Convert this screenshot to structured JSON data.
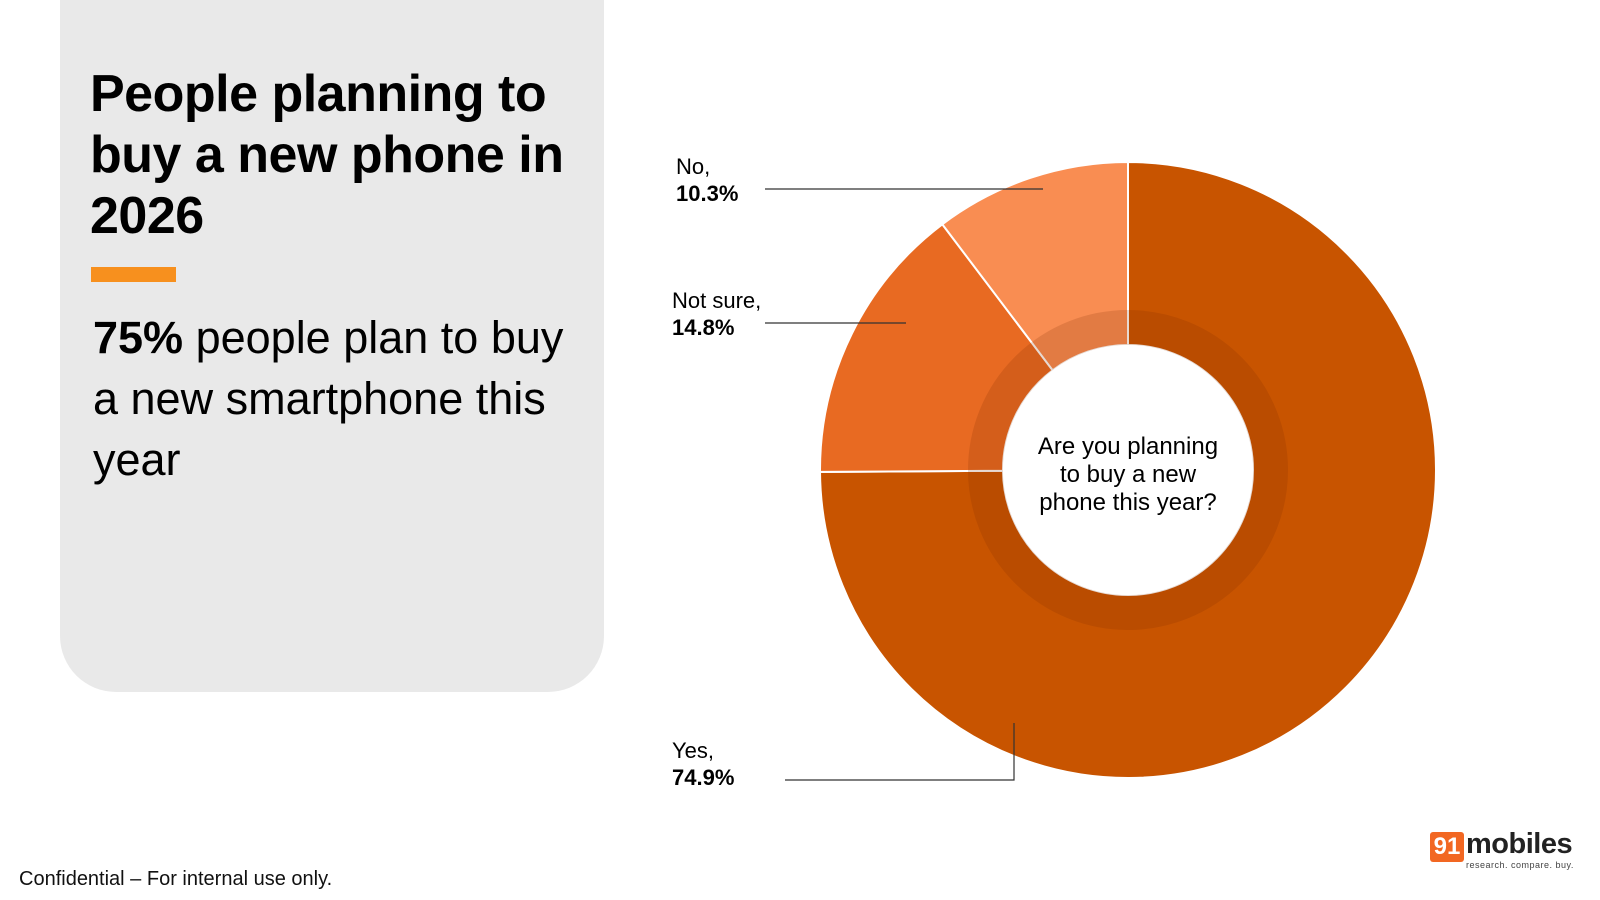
{
  "headline": {
    "title": "People planning to buy a new phone in 2026",
    "sub_bold": "75%",
    "sub_rest": " people plan to buy a new smartphone this year"
  },
  "colors": {
    "accent": "#f7901e",
    "panel": "#e9e9e9",
    "yes": "#c85400",
    "not_sure": "#e86a22",
    "no": "#f98d52"
  },
  "chart_data": {
    "type": "pie",
    "center_text": [
      "Are you planning",
      "to buy a new",
      "phone this year?"
    ],
    "slices": [
      {
        "name": "Yes,",
        "value": 74.9,
        "label": "74.9%",
        "color": "#c85400"
      },
      {
        "name": "Not sure,",
        "value": 14.8,
        "label": "14.8%",
        "color": "#e86a22"
      },
      {
        "name": "No,",
        "value": 10.3,
        "label": "10.3%",
        "color": "#f98d52"
      }
    ]
  },
  "footer": "Confidential – For internal use only.",
  "logo": {
    "badge": "91",
    "word": "mobiles",
    "tagline": "research. compare. buy."
  }
}
